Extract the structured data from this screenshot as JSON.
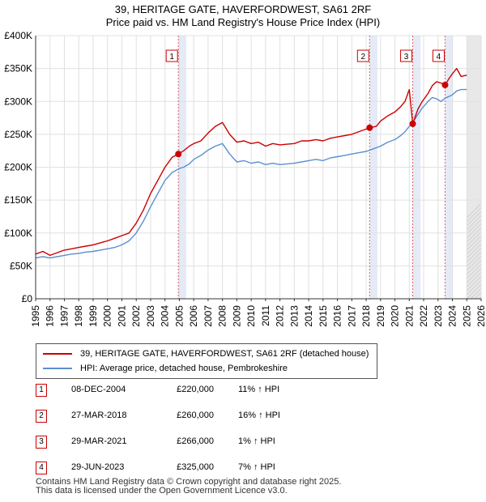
{
  "chart_data": {
    "type": "line",
    "title": "39, HERITAGE GATE, HAVERFORDWEST, SA61 2RF",
    "subtitle": "Price paid vs. HM Land Registry's House Price Index (HPI)",
    "xlabel": "",
    "ylabel": "",
    "xlim": [
      1995,
      2026
    ],
    "ylim": [
      0,
      400000
    ],
    "yticks": [
      0,
      50000,
      100000,
      150000,
      200000,
      250000,
      300000,
      350000,
      400000
    ],
    "ytick_labels": [
      "£0",
      "£50K",
      "£100K",
      "£150K",
      "£200K",
      "£250K",
      "£300K",
      "£350K",
      "£400K"
    ],
    "xtick_labels": [
      "1995",
      "1996",
      "1997",
      "1998",
      "1999",
      "2000",
      "2001",
      "2002",
      "2003",
      "2004",
      "2005",
      "2006",
      "2007",
      "2008",
      "2009",
      "2010",
      "2011",
      "2012",
      "2013",
      "2014",
      "2015",
      "2016",
      "2017",
      "2018",
      "2019",
      "2020",
      "2021",
      "2022",
      "2023",
      "2024",
      "2025",
      "2026"
    ],
    "grid": true,
    "forecast_start": 2025.0,
    "series": [
      {
        "name": "39, HERITAGE GATE, HAVERFORDWEST, SA61 2RF (detached house)",
        "color": "#cc0000",
        "x": [
          1995.0,
          1995.5,
          1996.0,
          1996.5,
          1997.0,
          1997.5,
          1998.0,
          1998.5,
          1999.0,
          1999.5,
          2000.0,
          2000.5,
          2001.0,
          2001.5,
          2002.0,
          2002.5,
          2003.0,
          2003.5,
          2004.0,
          2004.5,
          2004.93,
          2005.3,
          2005.7,
          2006.0,
          2006.5,
          2007.0,
          2007.5,
          2008.0,
          2008.5,
          2009.0,
          2009.5,
          2010.0,
          2010.5,
          2011.0,
          2011.5,
          2012.0,
          2012.5,
          2013.0,
          2013.5,
          2014.0,
          2014.5,
          2015.0,
          2015.5,
          2016.0,
          2016.5,
          2017.0,
          2017.5,
          2018.0,
          2018.24,
          2018.7,
          2019.0,
          2019.5,
          2020.0,
          2020.4,
          2020.7,
          2021.0,
          2021.24,
          2021.6,
          2021.9,
          2022.3,
          2022.6,
          2022.9,
          2023.2,
          2023.49,
          2023.8,
          2024.0,
          2024.3,
          2024.6,
          2025.0
        ],
        "values": [
          68000,
          72000,
          66000,
          70000,
          74000,
          76000,
          78000,
          80000,
          82000,
          85000,
          88000,
          92000,
          96000,
          100000,
          115000,
          135000,
          160000,
          180000,
          200000,
          215000,
          220000,
          225000,
          232000,
          236000,
          240000,
          252000,
          262000,
          268000,
          250000,
          238000,
          240000,
          236000,
          238000,
          232000,
          236000,
          234000,
          235000,
          236000,
          240000,
          240000,
          242000,
          240000,
          244000,
          246000,
          248000,
          250000,
          254000,
          258000,
          260000,
          262000,
          270000,
          278000,
          284000,
          292000,
          300000,
          318000,
          266000,
          288000,
          300000,
          312000,
          324000,
          330000,
          328000,
          325000,
          336000,
          342000,
          350000,
          338000,
          340000
        ]
      },
      {
        "name": "HPI: Average price, detached house, Pembrokeshire",
        "color": "#5b8fd0",
        "x": [
          1995.0,
          1995.5,
          1996.0,
          1996.5,
          1997.0,
          1997.5,
          1998.0,
          1998.5,
          1999.0,
          1999.5,
          2000.0,
          2000.5,
          2001.0,
          2001.5,
          2002.0,
          2002.5,
          2003.0,
          2003.5,
          2004.0,
          2004.5,
          2005.0,
          2005.3,
          2005.7,
          2006.0,
          2006.5,
          2007.0,
          2007.5,
          2008.0,
          2008.5,
          2009.0,
          2009.5,
          2010.0,
          2010.5,
          2011.0,
          2011.5,
          2012.0,
          2012.5,
          2013.0,
          2013.5,
          2014.0,
          2014.5,
          2015.0,
          2015.5,
          2016.0,
          2016.5,
          2017.0,
          2017.5,
          2018.0,
          2018.5,
          2019.0,
          2019.5,
          2020.0,
          2020.4,
          2020.7,
          2021.0,
          2021.3,
          2021.6,
          2021.9,
          2022.3,
          2022.6,
          2022.9,
          2023.2,
          2023.5,
          2023.8,
          2024.0,
          2024.3,
          2024.6,
          2025.0
        ],
        "values": [
          62000,
          64000,
          62000,
          64000,
          66000,
          68000,
          69000,
          71000,
          72000,
          74000,
          76000,
          78000,
          82000,
          88000,
          100000,
          118000,
          140000,
          160000,
          180000,
          192000,
          198000,
          200000,
          205000,
          212000,
          218000,
          226000,
          232000,
          236000,
          220000,
          208000,
          210000,
          206000,
          208000,
          204000,
          206000,
          204000,
          205000,
          206000,
          208000,
          210000,
          212000,
          210000,
          214000,
          216000,
          218000,
          220000,
          222000,
          224000,
          228000,
          232000,
          238000,
          242000,
          248000,
          254000,
          262000,
          270000,
          280000,
          290000,
          300000,
          306000,
          304000,
          300000,
          305000,
          308000,
          310000,
          316000,
          318000,
          318000
        ]
      }
    ],
    "transactions": [
      {
        "num": "1",
        "x": 2004.93,
        "date": "08-DEC-2004",
        "price": "£220,000",
        "hpi": "11% ↑ HPI",
        "value": 220000
      },
      {
        "num": "2",
        "x": 2018.24,
        "date": "27-MAR-2018",
        "price": "£260,000",
        "hpi": "16% ↑ HPI",
        "value": 260000
      },
      {
        "num": "3",
        "x": 2021.24,
        "date": "29-MAR-2021",
        "price": "£266,000",
        "hpi": "1% ↑ HPI",
        "value": 266000
      },
      {
        "num": "4",
        "x": 2023.49,
        "date": "29-JUN-2023",
        "price": "£325,000",
        "hpi": "7% ↑ HPI",
        "value": 325000
      }
    ]
  },
  "legend": {
    "property_label": "39, HERITAGE GATE, HAVERFORDWEST, SA61 2RF (detached house)",
    "hpi_label": "HPI: Average price, detached house, Pembrokeshire"
  },
  "footer": {
    "line1": "Contains HM Land Registry data © Crown copyright and database right 2025.",
    "line2": "This data is licensed under the Open Government Licence v3.0."
  }
}
